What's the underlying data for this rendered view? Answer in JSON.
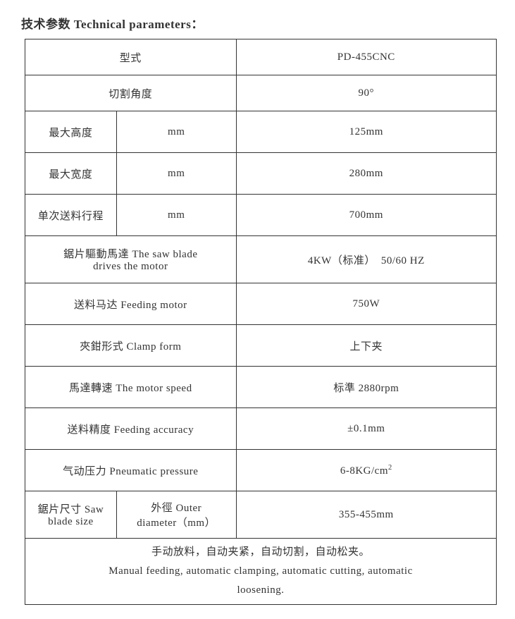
{
  "title": "技术参数 Technical parameters：",
  "table": {
    "col_widths": [
      "130px",
      "170px",
      "370px"
    ],
    "border_color": "#333",
    "rows": [
      {
        "cells": [
          {
            "text": "型式",
            "colspan": 2
          },
          {
            "text": "PD-455CNC"
          }
        ],
        "height": "normal"
      },
      {
        "cells": [
          {
            "text": "切割角度",
            "colspan": 2
          },
          {
            "text": "90°"
          }
        ],
        "height": "normal"
      },
      {
        "cells": [
          {
            "text": "最大高度"
          },
          {
            "text": "mm"
          },
          {
            "text": "125mm"
          }
        ],
        "height": "tall"
      },
      {
        "cells": [
          {
            "text": "最大宽度"
          },
          {
            "text": "mm"
          },
          {
            "text": "280mm"
          }
        ],
        "height": "tall"
      },
      {
        "cells": [
          {
            "text": "单次送料行程"
          },
          {
            "text": "mm"
          },
          {
            "text": "700mm"
          }
        ],
        "height": "tall"
      },
      {
        "cells": [
          {
            "html": "鋸片驅動馬達 The saw blade<br>drives the motor",
            "colspan": 2
          },
          {
            "text": "4KW（标准）　50/60 HZ"
          }
        ],
        "height": "xtall"
      },
      {
        "cells": [
          {
            "text": "送料马达 Feeding motor",
            "colspan": 2
          },
          {
            "text": "750W"
          }
        ],
        "height": "tall"
      },
      {
        "cells": [
          {
            "text": "夾鉗形式 Clamp form",
            "colspan": 2
          },
          {
            "text": "上下夹"
          }
        ],
        "height": "tall"
      },
      {
        "cells": [
          {
            "text": "馬達轉速 The motor speed",
            "colspan": 2
          },
          {
            "text": "标準 2880rpm"
          }
        ],
        "height": "tall"
      },
      {
        "cells": [
          {
            "text": "送料精度 Feeding accuracy",
            "colspan": 2
          },
          {
            "text": "±0.1mm"
          }
        ],
        "height": "tall"
      },
      {
        "cells": [
          {
            "text": "气动压力 Pneumatic pressure",
            "colspan": 2
          },
          {
            "html": "6-8KG/cm<sup>2</sup>"
          }
        ],
        "height": "tall"
      },
      {
        "cells": [
          {
            "html": "鋸片尺寸 Saw<br>blade size"
          },
          {
            "html": "外徑 Outer<br>diameter（mm）"
          },
          {
            "text": "355-455mm"
          }
        ],
        "height": "xtall"
      },
      {
        "cells": [
          {
            "html": "手动放料，自动夹紧，自动切割，自动松夹。<br>Manual feeding, automatic clamping, automatic cutting, automatic<br>loosening.",
            "colspan": 3
          }
        ],
        "height": "footer"
      }
    ]
  }
}
